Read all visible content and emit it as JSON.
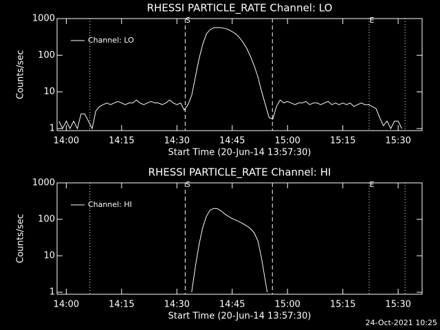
{
  "chart_data": [
    {
      "type": "line",
      "title": "RHESSI PARTICLE_RATE Channel: LO",
      "xlabel": "Start Time (20-Jun-14 13:57:30)",
      "ylabel": "Counts/sec",
      "log_y": true,
      "legend": "upper left",
      "xlim": [
        "13:57:30",
        "15:36:30"
      ],
      "xticks": [
        "14:00",
        "14:15",
        "14:30",
        "14:45",
        "15:00",
        "15:15",
        "15:30"
      ],
      "ylim": [
        0.88,
        1000
      ],
      "yticks": [
        1,
        10,
        100,
        1000
      ],
      "markers": [
        {
          "x": "14:06:24",
          "style": "dotted"
        },
        {
          "x": "14:32:15",
          "style": "dashed",
          "label": "S"
        },
        {
          "x": "14:55:54",
          "style": "dashed"
        },
        {
          "x": "15:22:08",
          "style": "dotted",
          "label": "E"
        },
        {
          "x": "15:31:52",
          "style": "dotted"
        }
      ],
      "x": [
        "13:58",
        "13:59",
        "14:00",
        "14:01",
        "14:02",
        "14:03",
        "14:04",
        "14:05",
        "14:06",
        "14:07",
        "14:08",
        "14:09",
        "14:10",
        "14:11",
        "14:12",
        "14:13",
        "14:14",
        "14:15",
        "14:16",
        "14:17",
        "14:18",
        "14:19",
        "14:20",
        "14:21",
        "14:22",
        "14:23",
        "14:24",
        "14:25",
        "14:26",
        "14:27",
        "14:28",
        "14:29",
        "14:30",
        "14:31",
        "14:32",
        "14:33",
        "14:34",
        "14:35",
        "14:36",
        "14:37",
        "14:38",
        "14:39",
        "14:40",
        "14:41",
        "14:42",
        "14:43",
        "14:44",
        "14:45",
        "14:46",
        "14:47",
        "14:48",
        "14:49",
        "14:50",
        "14:51",
        "14:52",
        "14:53",
        "14:54",
        "14:55",
        "14:56",
        "14:57",
        "14:58",
        "14:59",
        "15:00",
        "15:01",
        "15:02",
        "15:03",
        "15:04",
        "15:05",
        "15:06",
        "15:07",
        "15:08",
        "15:09",
        "15:10",
        "15:11",
        "15:12",
        "15:13",
        "15:14",
        "15:15",
        "15:16",
        "15:17",
        "15:18",
        "15:19",
        "15:20",
        "15:21",
        "15:22",
        "15:23",
        "15:24",
        "15:25",
        "15:26",
        "15:27",
        "15:28",
        "15:29",
        "15:30",
        "15:31"
      ],
      "series": [
        {
          "name": "Channel: LO",
          "color": "#ffffff",
          "values": [
            1.6,
            1,
            1.6,
            1,
            1.6,
            1,
            2.5,
            2.5,
            1.6,
            1,
            3,
            4,
            4.5,
            5,
            4.5,
            5,
            5.5,
            5,
            4.5,
            5,
            5,
            6,
            5,
            4.5,
            5,
            5.5,
            5,
            5,
            4.5,
            5,
            6,
            5,
            4.5,
            5,
            3.2,
            4.5,
            8,
            25,
            80,
            200,
            380,
            500,
            560,
            570,
            560,
            540,
            500,
            440,
            380,
            300,
            220,
            150,
            90,
            50,
            25,
            10,
            4.5,
            2,
            1.8,
            4,
            6,
            5,
            5.5,
            5,
            4.5,
            5,
            5,
            5.5,
            4.5,
            5,
            5,
            4.5,
            5,
            5.5,
            4.5,
            5,
            4.5,
            5,
            4.5,
            5,
            4,
            4.5,
            5,
            4.5,
            4.5,
            4,
            3.5,
            2,
            1.2,
            1.6,
            1,
            1.6,
            1.6,
            1
          ]
        }
      ]
    },
    {
      "type": "line",
      "title": "RHESSI PARTICLE_RATE Channel: HI",
      "xlabel": "Start Time (20-Jun-14 13:57:30)",
      "ylabel": "Counts/sec",
      "log_y": true,
      "legend": "upper left",
      "xlim": [
        "13:57:30",
        "15:36:30"
      ],
      "xticks": [
        "14:00",
        "14:15",
        "14:30",
        "14:45",
        "15:00",
        "15:15",
        "15:30"
      ],
      "ylim": [
        0.88,
        1000
      ],
      "yticks": [
        1,
        10,
        100,
        1000
      ],
      "markers": [
        {
          "x": "14:06:24",
          "style": "dotted"
        },
        {
          "x": "14:32:15",
          "style": "dashed",
          "label": "S"
        },
        {
          "x": "14:55:54",
          "style": "dashed"
        },
        {
          "x": "15:22:08",
          "style": "dotted",
          "label": "E"
        },
        {
          "x": "15:31:52",
          "style": "dotted"
        }
      ],
      "x": [
        "14:34",
        "14:35",
        "14:36",
        "14:37",
        "14:38",
        "14:39",
        "14:40",
        "14:41",
        "14:42",
        "14:43",
        "14:44",
        "14:45",
        "14:46",
        "14:47",
        "14:48",
        "14:49",
        "14:50",
        "14:51",
        "14:52",
        "14:53",
        "14:54",
        "14:54:30"
      ],
      "series": [
        {
          "name": "Channel: HI",
          "color": "#ffffff",
          "values": [
            1,
            5,
            20,
            60,
            120,
            180,
            200,
            195,
            170,
            140,
            120,
            105,
            95,
            85,
            75,
            65,
            55,
            42,
            25,
            8,
            2,
            1
          ]
        }
      ]
    }
  ],
  "footer": "24-Oct-2021 10:25"
}
